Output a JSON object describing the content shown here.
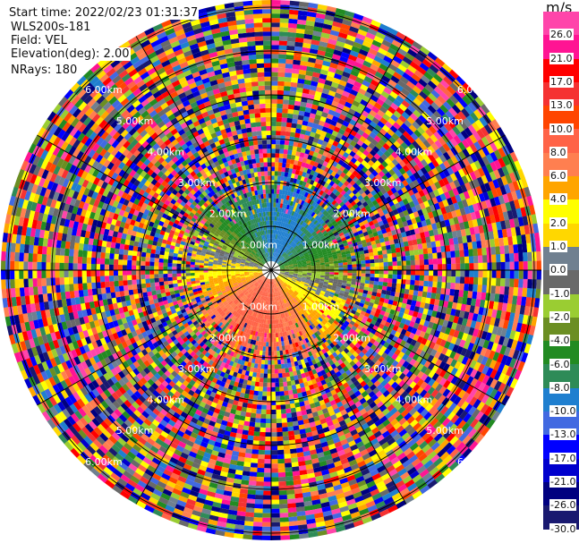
{
  "info": {
    "start_time": "Start time: 2022/02/23 01:31:37",
    "instrument": "WLS200s-181",
    "field": "Field: VEL",
    "elevation": "Elevation(deg): 2.00",
    "nrays": "NRays: 180"
  },
  "chart_data": {
    "type": "heatmap",
    "projection": "polar (PPI)",
    "nrays": 180,
    "range_rings": [
      "1.00km",
      "2.00km",
      "3.00km",
      "4.00km",
      "5.00km",
      "6.00km"
    ],
    "radial_lines_every_deg": 30,
    "colorbar": {
      "unit": "m/s",
      "labels": [
        "26.0",
        "21.0",
        "17.0",
        "13.0",
        "10.0",
        "8.0",
        "6.0",
        "4.0",
        "2.0",
        "1.0",
        "0.0",
        "-1.0",
        "-2.0",
        "-4.0",
        "-6.0",
        "-8.0",
        "-10.0",
        "-13.0",
        "-17.0",
        "-21.0",
        "-26.0",
        "-30.0"
      ],
      "colors": [
        "#ff45aa",
        "#ff1493",
        "#ff0000",
        "#f53232",
        "#ff4500",
        "#ff6347",
        "#ff7f50",
        "#ffa500",
        "#ffff00",
        "#ffd700",
        "#708090",
        "#696969",
        "#9acd32",
        "#6b8e23",
        "#228b22",
        "#2e8b57",
        "#1f7fcf",
        "#4169e1",
        "#0000ff",
        "#0000cd",
        "#000080",
        "#191970"
      ]
    }
  }
}
